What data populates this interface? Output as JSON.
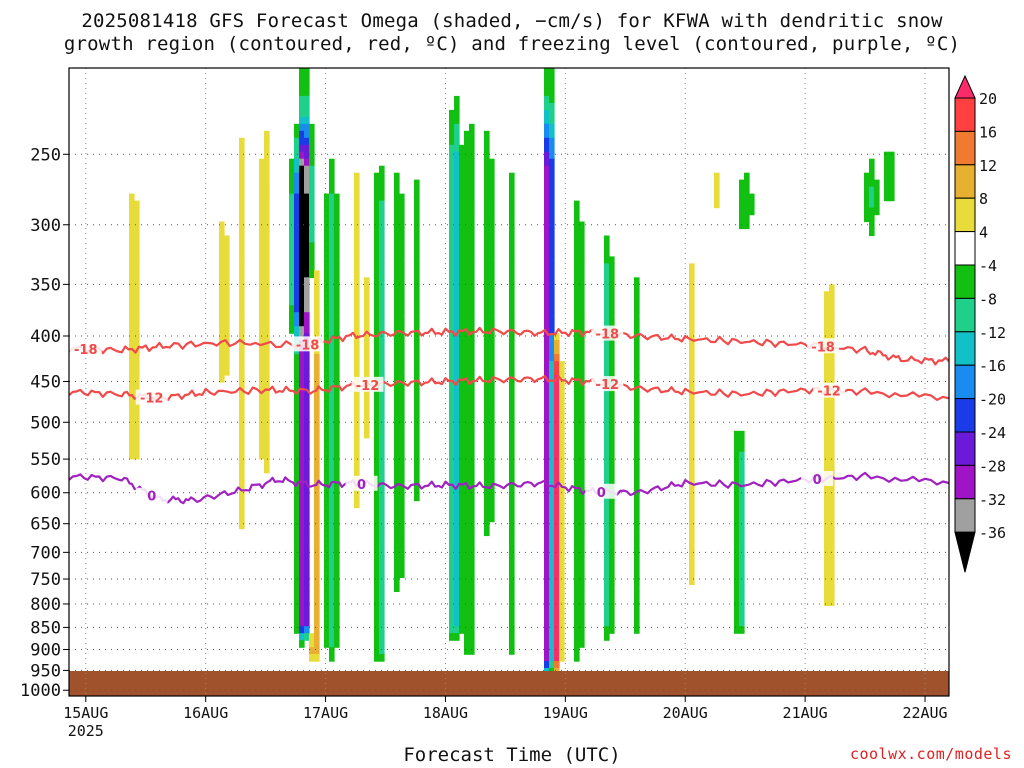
{
  "title": {
    "line1": "2025081418 GFS Forecast Omega (shaded, −cm/s) for KFWA with dendritic snow",
    "line2": "growth region (contoured, red, ºC) and freezing level (contoured, purple, ºC)"
  },
  "xlabel": "Forecast Time (UTC)",
  "credit": "coolwx.com/models",
  "chart_data": {
    "type": "heatmap",
    "x_ticks": [
      "15AUG",
      "16AUG",
      "17AUG",
      "18AUG",
      "19AUG",
      "20AUG",
      "21AUG",
      "22AUG"
    ],
    "x_year": "2025",
    "xlim_days": [
      14.86,
      22.2
    ],
    "y_ticks": [
      250,
      300,
      350,
      400,
      450,
      500,
      550,
      600,
      650,
      700,
      750,
      800,
      850,
      900,
      950,
      1000
    ],
    "ylim_hpa": [
      200,
      1015
    ],
    "y_scale": "log",
    "ground_level_hpa": 980,
    "colorbar": {
      "labels": [
        "20",
        "16",
        "12",
        "8",
        "4",
        "-4",
        "-8",
        "-12",
        "-16",
        "-20",
        "-24",
        "-28",
        "-32",
        "-36"
      ],
      "levels": [
        24,
        20,
        16,
        12,
        8,
        4,
        -4,
        -8,
        -12,
        -16,
        -20,
        -24,
        -28,
        -32,
        -36,
        -40
      ],
      "colors": [
        "#ff2a6a",
        "#ff4040",
        "#f07a30",
        "#e8b030",
        "#e8dc3a",
        "#ffffff",
        "#12c012",
        "#1ed08a",
        "#12c0c8",
        "#1a8cf0",
        "#1a3ce8",
        "#6a1ad8",
        "#a014c8",
        "#a0a0a0",
        "#000000"
      ]
    },
    "contours": [
      {
        "name": "-18",
        "color": "#f04a4a",
        "label": "-18",
        "x": [
          14.86,
          15.3,
          15.7,
          16.2,
          16.8,
          17.2,
          17.6,
          18.0,
          18.4,
          18.8,
          19.2,
          19.6,
          20.0,
          20.5,
          21.0,
          21.5,
          21.8,
          22.2
        ],
        "y": [
          413,
          415,
          410,
          407,
          410,
          400,
          397,
          396,
          395,
          397,
          396,
          400,
          403,
          406,
          409,
          415,
          425,
          427
        ],
        "label_positions": [
          15.0,
          16.85,
          19.35,
          21.15
        ]
      },
      {
        "name": "-12",
        "color": "#f04a4a",
        "label": "-12",
        "x": [
          14.86,
          15.3,
          15.6,
          16.0,
          16.5,
          16.9,
          17.2,
          17.6,
          18.0,
          18.4,
          18.8,
          19.2,
          19.6,
          20.0,
          20.5,
          21.0,
          21.5,
          22.2
        ],
        "y": [
          462,
          465,
          470,
          463,
          460,
          461,
          455,
          452,
          450,
          448,
          447,
          450,
          458,
          462,
          465,
          460,
          462,
          470
        ],
        "label_positions": [
          15.55,
          17.35,
          19.35,
          21.2
        ]
      },
      {
        "name": "0",
        "color": "#a020c0",
        "label": "0",
        "x": [
          14.86,
          15.3,
          15.6,
          15.9,
          16.3,
          16.6,
          16.9,
          17.2,
          17.6,
          18.0,
          18.4,
          18.8,
          19.2,
          19.6,
          20.0,
          20.5,
          21.0,
          21.5,
          22.2
        ],
        "y": [
          575,
          578,
          610,
          612,
          596,
          580,
          588,
          585,
          590,
          588,
          590,
          585,
          598,
          600,
          585,
          588,
          580,
          575,
          585
        ],
        "label_positions": [
          15.55,
          17.3,
          19.3,
          21.1
        ]
      }
    ]
  }
}
